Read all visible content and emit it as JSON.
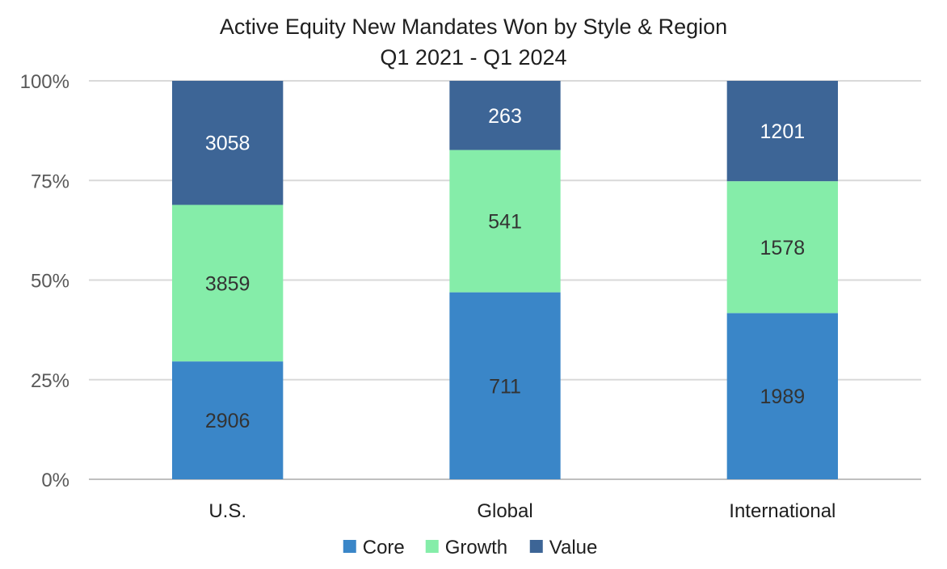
{
  "chart_data": {
    "type": "bar",
    "stacked": "percent",
    "title": "Active Equity New Mandates Won by Style & Region",
    "subtitle": "Q1 2021 - Q1 2024",
    "categories": [
      "U.S.",
      "Global",
      "International"
    ],
    "series": [
      {
        "name": "Core",
        "values": [
          2906,
          711,
          1989
        ],
        "color": "#3a86c8",
        "label_color": "#333333"
      },
      {
        "name": "Growth",
        "values": [
          3859,
          541,
          1578
        ],
        "color": "#85eda9",
        "label_color": "#333333"
      },
      {
        "name": "Value",
        "values": [
          3058,
          263,
          1201
        ],
        "color": "#3d6596",
        "label_color": "#ffffff"
      }
    ],
    "yticks": [
      "0%",
      "25%",
      "50%",
      "75%",
      "100%"
    ],
    "ylim": [
      0,
      100
    ],
    "grid": true,
    "legend": "bottom"
  }
}
